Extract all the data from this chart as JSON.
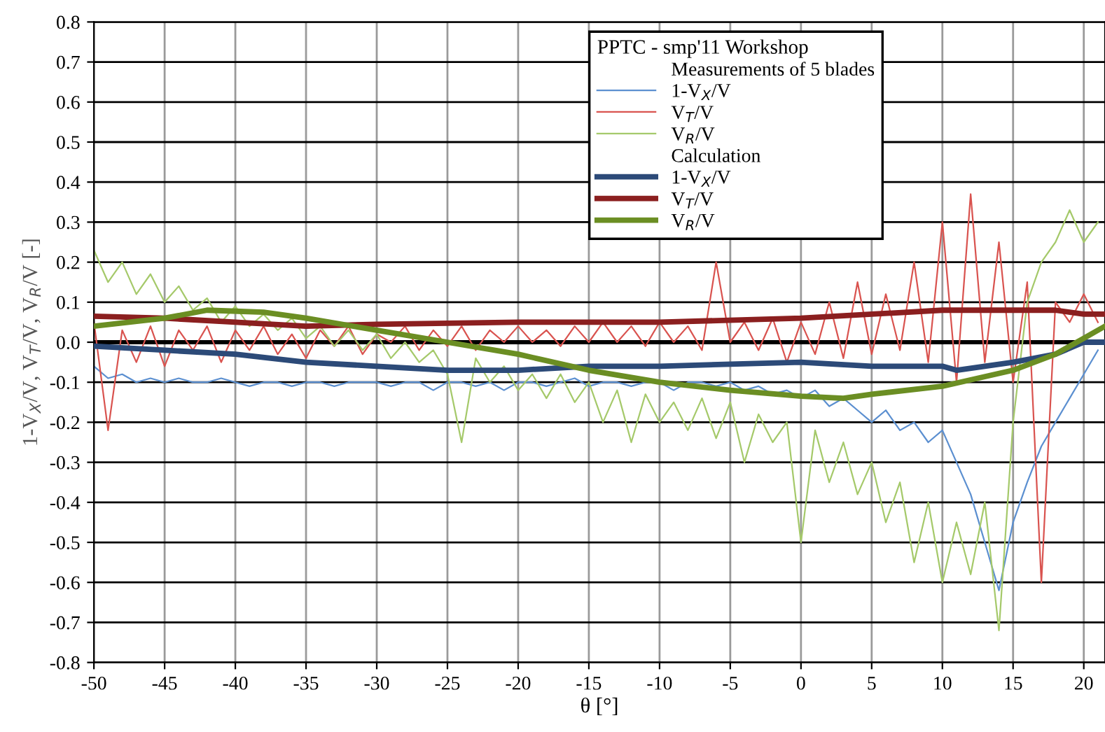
{
  "chart_data": {
    "type": "line",
    "xlabel": "θ [°]",
    "ylabel": "1-V$_{X}$/V, V$_{T}$/V, V$_{R}$/V [-]",
    "legend_title": "PPTC - smp'11 Workshop",
    "annotations": [
      "Measurements of 5 blades",
      "Calculation"
    ],
    "x": [
      -50,
      -49,
      -48,
      -47,
      -46,
      -45,
      -44,
      -43,
      -42,
      -41,
      -40,
      -39,
      -38,
      -37,
      -36,
      -35,
      -34,
      -33,
      -32,
      -31,
      -30,
      -29,
      -28,
      -27,
      -26,
      -25,
      -24,
      -23,
      -22,
      -21,
      -20,
      -19,
      -18,
      -17,
      -16,
      -15,
      -14,
      -13,
      -12,
      -11,
      -10,
      -9,
      -8,
      -7,
      -6,
      -5,
      -4,
      -3,
      -2,
      -1,
      0,
      1,
      2,
      3,
      4,
      5,
      6,
      7,
      8,
      9,
      10,
      11,
      12,
      13,
      14,
      15,
      16,
      17,
      18,
      19,
      20,
      21
    ],
    "series": [
      {
        "name": "1-V$_{X}$/V",
        "color": "#5b8fd0",
        "values": [
          -0.06,
          -0.09,
          -0.08,
          -0.1,
          -0.09,
          -0.1,
          -0.09,
          -0.1,
          -0.1,
          -0.09,
          -0.1,
          -0.11,
          -0.1,
          -0.1,
          -0.11,
          -0.1,
          -0.1,
          -0.11,
          -0.1,
          -0.1,
          -0.1,
          -0.11,
          -0.1,
          -0.1,
          -0.12,
          -0.1,
          -0.1,
          -0.11,
          -0.1,
          -0.12,
          -0.1,
          -0.1,
          -0.11,
          -0.1,
          -0.09,
          -0.11,
          -0.1,
          -0.1,
          -0.11,
          -0.1,
          -0.1,
          -0.12,
          -0.1,
          -0.1,
          -0.11,
          -0.1,
          -0.12,
          -0.11,
          -0.13,
          -0.12,
          -0.14,
          -0.12,
          -0.16,
          -0.14,
          -0.17,
          -0.2,
          -0.17,
          -0.22,
          -0.2,
          -0.25,
          -0.22,
          -0.3,
          -0.38,
          -0.5,
          -0.62,
          -0.45,
          -0.35,
          -0.26,
          -0.2,
          -0.14,
          -0.08,
          -0.02
        ]
      },
      {
        "name": "V$_{T}$/V",
        "color": "#d9534f",
        "values": [
          0.05,
          -0.22,
          0.03,
          -0.05,
          0.04,
          -0.06,
          0.03,
          -0.02,
          0.04,
          -0.05,
          0.03,
          -0.02,
          0.04,
          -0.03,
          0.02,
          -0.04,
          0.03,
          -0.01,
          0.04,
          -0.03,
          0.02,
          0.0,
          0.04,
          -0.02,
          0.03,
          -0.01,
          0.04,
          -0.02,
          0.03,
          0.0,
          0.04,
          0.0,
          0.03,
          -0.01,
          0.04,
          0.0,
          0.05,
          0.0,
          0.04,
          -0.01,
          0.05,
          0.0,
          0.04,
          -0.02,
          0.2,
          0.0,
          0.05,
          -0.02,
          0.06,
          -0.05,
          0.05,
          -0.03,
          0.1,
          -0.04,
          0.15,
          -0.03,
          0.12,
          -0.02,
          0.2,
          -0.05,
          0.3,
          -0.1,
          0.37,
          -0.05,
          0.25,
          -0.1,
          0.15,
          -0.6,
          0.1,
          0.05,
          0.12,
          0.05
        ]
      },
      {
        "name": "V$_{R}$/V",
        "color": "#a5c96a",
        "values": [
          0.23,
          0.15,
          0.2,
          0.12,
          0.17,
          0.1,
          0.14,
          0.08,
          0.11,
          0.05,
          0.09,
          0.04,
          0.07,
          0.03,
          0.06,
          0.01,
          0.04,
          -0.01,
          0.03,
          -0.02,
          0.02,
          -0.04,
          0.0,
          -0.05,
          -0.02,
          -0.08,
          -0.25,
          -0.04,
          -0.1,
          -0.06,
          -0.12,
          -0.08,
          -0.14,
          -0.08,
          -0.15,
          -0.1,
          -0.2,
          -0.12,
          -0.25,
          -0.13,
          -0.2,
          -0.15,
          -0.22,
          -0.14,
          -0.24,
          -0.15,
          -0.3,
          -0.18,
          -0.25,
          -0.2,
          -0.5,
          -0.22,
          -0.35,
          -0.25,
          -0.38,
          -0.3,
          -0.45,
          -0.35,
          -0.55,
          -0.4,
          -0.6,
          -0.45,
          -0.58,
          -0.4,
          -0.72,
          -0.2,
          0.1,
          0.2,
          0.25,
          0.33,
          0.25,
          0.3
        ]
      },
      {
        "name": "1-V$_{X}$/V",
        "color": "#2c4a78",
        "x": [
          -50,
          -45,
          -40,
          -35,
          -30,
          -25,
          -20,
          -15,
          -10,
          -5,
          0,
          5,
          10,
          11,
          15,
          18,
          20,
          21.5
        ],
        "values": [
          -0.01,
          -0.02,
          -0.03,
          -0.05,
          -0.06,
          -0.07,
          -0.07,
          -0.06,
          -0.06,
          -0.055,
          -0.05,
          -0.06,
          -0.06,
          -0.07,
          -0.05,
          -0.03,
          0.0,
          0.0
        ]
      },
      {
        "name": "V$_{T}$/V",
        "color": "#8b1f1f",
        "x": [
          -50,
          -45,
          -40,
          -35,
          -30,
          -20,
          -10,
          0,
          5,
          10,
          15,
          18,
          20,
          21.5
        ],
        "values": [
          0.065,
          0.06,
          0.05,
          0.04,
          0.045,
          0.05,
          0.05,
          0.06,
          0.07,
          0.08,
          0.08,
          0.08,
          0.07,
          0.07
        ]
      },
      {
        "name": "V$_{R}$/V",
        "color": "#6b8e23",
        "x": [
          -50,
          -45,
          -42,
          -38,
          -35,
          -30,
          -25,
          -20,
          -15,
          -10,
          -5,
          0,
          3,
          5,
          10,
          15,
          18,
          20,
          21.5
        ],
        "values": [
          0.04,
          0.06,
          0.08,
          0.075,
          0.06,
          0.03,
          0.0,
          -0.03,
          -0.07,
          -0.1,
          -0.12,
          -0.135,
          -0.14,
          -0.13,
          -0.11,
          -0.07,
          -0.03,
          0.01,
          0.04
        ]
      }
    ],
    "xlim": [
      -50,
      21.5
    ],
    "ylim": [
      -0.8,
      0.8
    ],
    "xticks": [
      -50,
      -45,
      -40,
      -35,
      -30,
      -25,
      -20,
      -15,
      -10,
      -5,
      0,
      5,
      10,
      15,
      20
    ],
    "yticks": [
      -0.8,
      -0.7,
      -0.6,
      -0.5,
      -0.4,
      -0.3,
      -0.2,
      -0.1,
      {
        "value": 0,
        "label": "0.0"
      },
      0.1,
      0.2,
      0.3,
      0.4,
      0.5,
      0.6,
      0.7,
      0.8
    ],
    "ref_lines": [
      {
        "axis": "y",
        "value": 0.0,
        "color": "#000000"
      }
    ],
    "grid": true,
    "legend": "top",
    "marker": "none",
    "line_style": "solid"
  }
}
